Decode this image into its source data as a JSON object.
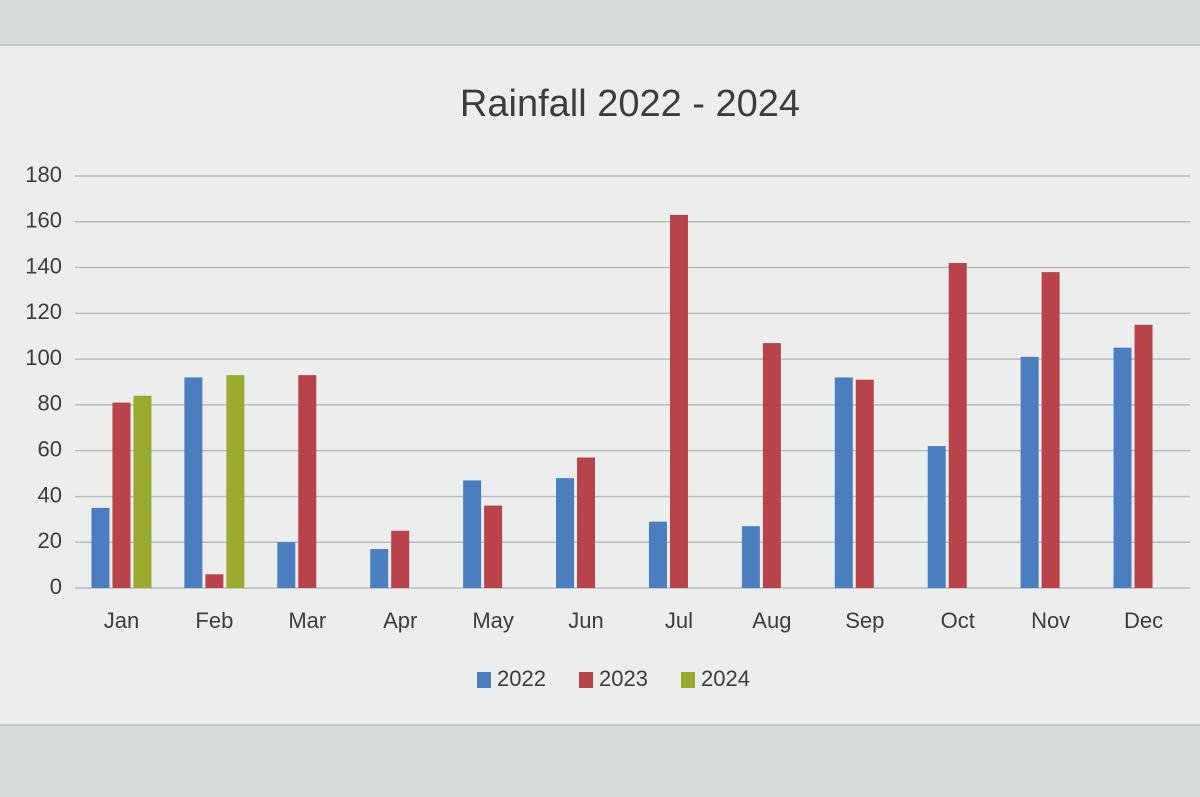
{
  "chart_data": {
    "type": "bar",
    "title": "Rainfall 2022 - 2024",
    "categories": [
      "Jan",
      "Feb",
      "Mar",
      "Apr",
      "May",
      "Jun",
      "Jul",
      "Aug",
      "Sep",
      "Oct",
      "Nov",
      "Dec"
    ],
    "series": [
      {
        "name": "2022",
        "color": "#4a7ebf",
        "values": [
          35,
          92,
          20,
          17,
          47,
          48,
          29,
          27,
          92,
          62,
          101,
          105
        ]
      },
      {
        "name": "2023",
        "color": "#b8434a",
        "values": [
          81,
          6,
          93,
          25,
          36,
          57,
          163,
          107,
          91,
          142,
          138,
          115
        ]
      },
      {
        "name": "2024",
        "color": "#9aaa2e",
        "values": [
          84,
          93,
          null,
          null,
          null,
          null,
          null,
          null,
          null,
          null,
          null,
          null
        ]
      }
    ],
    "ylim": [
      0,
      180
    ],
    "yticks": [
      0,
      20,
      40,
      60,
      80,
      100,
      120,
      140,
      160,
      180
    ],
    "grid": true,
    "legend": "bottom"
  }
}
